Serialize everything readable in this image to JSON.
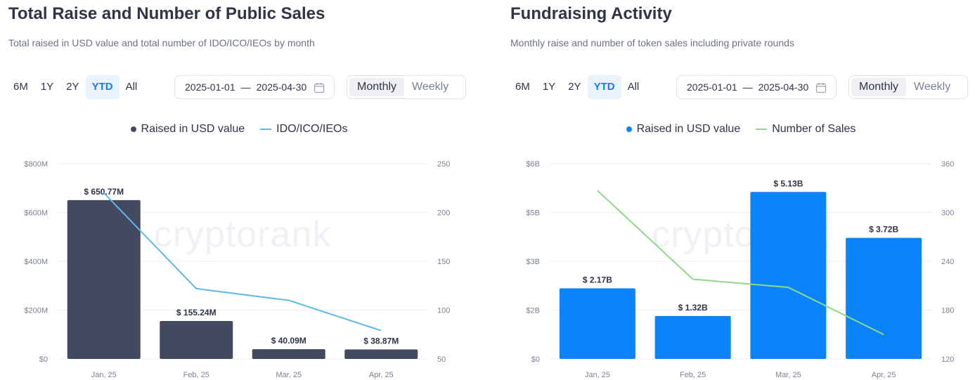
{
  "range_tabs": [
    "6M",
    "1Y",
    "2Y",
    "YTD",
    "All"
  ],
  "active_range": "YTD",
  "date_from": "2025-01-01",
  "date_sep": "—",
  "date_to": "2025-04-30",
  "period_options": [
    "Monthly",
    "Weekly"
  ],
  "active_period": "Monthly",
  "watermark": "cryptorank",
  "icons": {
    "calendar": "calendar-icon",
    "legend_dot": "legend-dot",
    "legend_line": "legend-line"
  },
  "chart_data": [
    {
      "type": "bar",
      "title": "Total Raise and Number of Public Sales",
      "subtitle": "Total raised in USD value and total number of IDO/ICO/IEOs by month",
      "categories": [
        "Jan, 25",
        "Feb, 25",
        "Mar, 25",
        "Apr, 25"
      ],
      "series": [
        {
          "name": "Raised in USD value",
          "kind": "bar",
          "axis": "left",
          "color": "#434a60",
          "values": [
            650.77,
            155.24,
            40.09,
            38.87
          ],
          "labels": [
            "$ 650.77M",
            "$ 155.24M",
            "$ 40.09M",
            "$ 38.87M"
          ]
        },
        {
          "name": "IDO/ICO/IEOs",
          "kind": "line",
          "axis": "right",
          "color": "#5fb7ee",
          "values": [
            220,
            122,
            110,
            79
          ]
        }
      ],
      "y_left": {
        "range": [
          0,
          800
        ],
        "ticks": [
          0,
          200,
          400,
          600,
          800
        ],
        "tick_labels": [
          "$0",
          "$200M",
          "$400M",
          "$600M",
          "$800M"
        ]
      },
      "y_right": {
        "range": [
          50,
          250
        ],
        "ticks": [
          50,
          100,
          150,
          200,
          250
        ],
        "tick_labels": [
          "50",
          "100",
          "150",
          "200",
          "250"
        ]
      },
      "grid": true,
      "legend": "top-center"
    },
    {
      "type": "bar",
      "title": "Fundraising Activity",
      "subtitle": "Monthly raise and number of token sales including private rounds",
      "categories": [
        "Jan, 25",
        "Feb, 25",
        "Mar, 25",
        "Apr, 25"
      ],
      "series": [
        {
          "name": "Raised in USD value",
          "kind": "bar",
          "axis": "left",
          "color": "#0a84fa",
          "values": [
            2.17,
            1.32,
            5.13,
            3.72
          ],
          "labels": [
            "$ 2.17B",
            "$ 1.32B",
            "$ 5.13B",
            "$ 3.72B"
          ]
        },
        {
          "name": "Number of Sales",
          "kind": "line",
          "axis": "right",
          "color": "#8fd88a",
          "values": [
            327,
            218,
            208,
            150
          ]
        }
      ],
      "y_left": {
        "range": [
          0,
          6
        ],
        "ticks": [
          0,
          1.5,
          3,
          4.5,
          6
        ],
        "tick_labels": [
          "$0",
          "$2B",
          "$3B",
          "$5B",
          "$6B"
        ]
      },
      "y_right": {
        "range": [
          120,
          360
        ],
        "ticks": [
          120,
          180,
          240,
          300,
          360
        ],
        "tick_labels": [
          "120",
          "180",
          "240",
          "300",
          "360"
        ]
      },
      "grid": true,
      "legend": "top-center"
    }
  ]
}
